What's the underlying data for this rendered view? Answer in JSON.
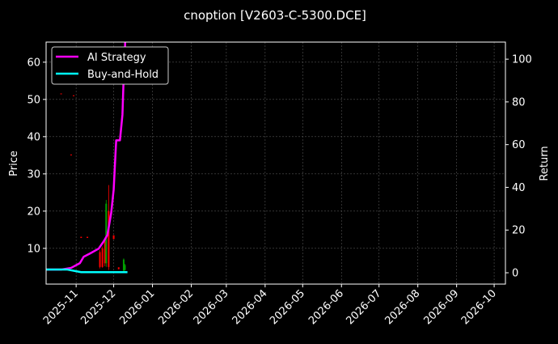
{
  "chart_data": {
    "type": "line",
    "title": "cnoption [V2603-C-5300.DCE]",
    "ylabel": "Price",
    "y2label": "Return",
    "xlim": [
      "2025-10-08",
      "2026-10-10"
    ],
    "ylim": [
      0.4,
      65.4
    ],
    "y2lim": [
      -5.3,
      108
    ],
    "x_ticks": [
      "2025-11",
      "2025-12",
      "2026-01",
      "2026-02",
      "2026-03",
      "2026-04",
      "2026-05",
      "2026-06",
      "2026-07",
      "2026-08",
      "2026-09",
      "2026-10"
    ],
    "y_ticks": [
      10,
      20,
      30,
      40,
      50,
      60
    ],
    "y2_ticks": [
      0,
      20,
      40,
      60,
      80,
      100
    ],
    "grid": true,
    "legend_position": "top-left",
    "colors": {
      "background": "#000000",
      "ai": "#ff00ff",
      "bh": "#00ffff",
      "up": "#00a000",
      "down": "#ff0000",
      "grid": "#555555"
    },
    "series": [
      {
        "name": "AI Strategy",
        "axis": "right",
        "x": [
          "2025-10-08",
          "2025-10-20",
          "2025-10-28",
          "2025-11-04",
          "2025-11-07",
          "2025-11-12",
          "2025-11-19",
          "2025-11-23",
          "2025-11-26",
          "2025-11-29",
          "2025-12-01",
          "2025-12-03",
          "2025-12-06",
          "2025-12-08",
          "2025-12-09",
          "2025-12-10",
          "2025-12-11"
        ],
        "y": [
          1.5,
          1.5,
          2.3,
          4.5,
          7.5,
          9,
          11.3,
          14.7,
          17.7,
          28,
          39,
          62,
          62,
          74,
          92,
          104,
          130
        ]
      },
      {
        "name": "Buy-and-Hold",
        "axis": "right",
        "x": [
          "2025-10-08",
          "2025-10-25",
          "2025-11-05",
          "2025-12-12"
        ],
        "y": [
          1.5,
          1.5,
          0.3,
          0.3
        ]
      }
    ],
    "candles": [
      {
        "date": "2025-10-20",
        "open": 51.6,
        "close": 51.4,
        "high": 51.6,
        "low": 51.4
      },
      {
        "date": "2025-10-28",
        "open": 35.2,
        "close": 35.0,
        "high": 35.2,
        "low": 35.0
      },
      {
        "date": "2025-10-30",
        "open": 51.1,
        "close": 50.9,
        "high": 51.1,
        "low": 50.9
      },
      {
        "date": "2025-11-05",
        "open": 13.1,
        "close": 12.8,
        "high": 13.1,
        "low": 12.8
      },
      {
        "date": "2025-11-10",
        "open": 13.1,
        "close": 12.8,
        "high": 13.1,
        "low": 12.8
      },
      {
        "date": "2025-11-20",
        "open": 9,
        "close": 5,
        "high": 9.5,
        "low": 4.6
      },
      {
        "date": "2025-11-22",
        "open": 10,
        "close": 5,
        "high": 10.5,
        "low": 4.8
      },
      {
        "date": "2025-11-24",
        "open": 12,
        "close": 6,
        "high": 12.5,
        "low": 5.2
      },
      {
        "date": "2025-11-25",
        "open": 6,
        "close": 22,
        "high": 23,
        "low": 5
      },
      {
        "date": "2025-11-27",
        "open": 20,
        "close": 5,
        "high": 27,
        "low": 4.2
      },
      {
        "date": "2025-12-01",
        "open": 13.5,
        "close": 12.5,
        "high": 13.5,
        "low": 12.5
      },
      {
        "date": "2025-12-05",
        "open": 4.9,
        "close": 4.4,
        "high": 4.9,
        "low": 4.4
      },
      {
        "date": "2025-12-09",
        "open": 4,
        "close": 7,
        "high": 7.3,
        "low": 3.5
      },
      {
        "date": "2025-12-10",
        "open": 4.2,
        "close": 5.5,
        "high": 5.8,
        "low": 4
      }
    ]
  }
}
